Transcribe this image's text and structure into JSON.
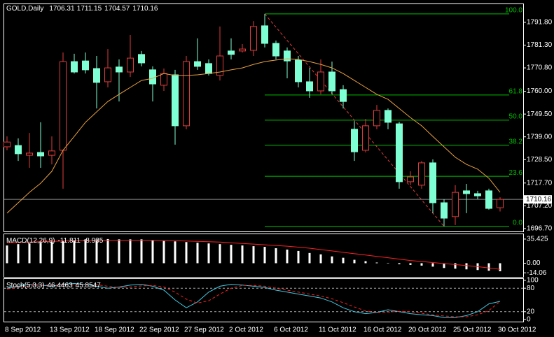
{
  "chart_data": [
    {
      "type": "candlestick",
      "title": "GOLD,Daily",
      "categories": [
        "8 Sep 2012",
        null,
        null,
        null,
        "13 Sep 2012",
        null,
        null,
        null,
        "18 Sep 2012",
        null,
        null,
        null,
        "22 Sep 2012",
        null,
        null,
        null,
        "27 Sep 2012",
        null,
        null,
        null,
        "2 Oct 2012",
        null,
        null,
        null,
        "6 Oct 2012",
        null,
        null,
        null,
        "11 Oct 2012",
        null,
        null,
        null,
        "16 Oct 2012",
        null,
        null,
        null,
        "20 Oct 2012",
        null,
        null,
        null,
        "25 Oct 2012",
        null,
        null,
        null,
        "30 Oct 2012"
      ],
      "open": [
        1734.4,
        1735.0,
        1730.5,
        1731.8,
        1730.5,
        1732.8,
        1773.7,
        1774.0,
        1770.5,
        1764.4,
        1771.2,
        1768.9,
        1777.0,
        1769.9,
        1762.8,
        1767.6,
        1744.1,
        1773.7,
        1772.8,
        1767.3,
        1778.6,
        1778.6,
        1778.9,
        1790.2,
        1782.1,
        1778.6,
        1774.4,
        1764.4,
        1760.2,
        1768.9,
        1760.8,
        1742.5,
        1732.8,
        1744.1,
        1751.2,
        1745.0,
        1718.3,
        1716.7,
        1727.0,
        1708.6,
        1702.2,
        1714.1,
        1712.8,
        1714.1,
        1706.31
      ],
      "high": [
        1739.2,
        1738.3,
        1740.8,
        1745.7,
        1739.2,
        1777.9,
        1777.3,
        1777.9,
        1776.3,
        1779.5,
        1774.7,
        1786.0,
        1778.6,
        1771.5,
        1770.5,
        1769.9,
        1776.3,
        1784.4,
        1774.7,
        1789.9,
        1784.4,
        1781.8,
        1792.4,
        1795.7,
        1783.4,
        1780.2,
        1776.3,
        1770.8,
        1774.7,
        1773.7,
        1762.8,
        1746.3,
        1747.3,
        1753.7,
        1752.1,
        1746.0,
        1723.1,
        1727.9,
        1728.6,
        1710.2,
        1716.7,
        1717.3,
        1714.1,
        1715.1,
        1711.15
      ],
      "low": [
        1732.8,
        1727.9,
        1724.7,
        1724.7,
        1726.3,
        1715.1,
        1768.2,
        1768.2,
        1752.1,
        1761.8,
        1755.3,
        1766.6,
        1771.5,
        1755.3,
        1760.2,
        1735.4,
        1742.5,
        1769.9,
        1767.3,
        1765.0,
        1774.7,
        1777.9,
        1776.3,
        1780.2,
        1774.7,
        1766.0,
        1761.8,
        1757.0,
        1758.6,
        1758.6,
        1752.1,
        1727.9,
        1731.8,
        1742.5,
        1742.5,
        1715.1,
        1716.7,
        1715.1,
        1703.8,
        1697.7,
        1698.3,
        1703.8,
        1710.2,
        1705.4,
        1704.57
      ],
      "close": [
        1736.6,
        1731.2,
        1731.5,
        1730.2,
        1732.5,
        1773.7,
        1768.9,
        1769.9,
        1764.1,
        1770.8,
        1768.9,
        1775.3,
        1773.1,
        1763.4,
        1768.2,
        1744.1,
        1773.7,
        1771.5,
        1768.2,
        1776.3,
        1777.0,
        1779.5,
        1789.9,
        1782.1,
        1776.3,
        1774.0,
        1764.4,
        1760.2,
        1768.9,
        1760.2,
        1755.3,
        1732.1,
        1744.1,
        1751.2,
        1745.7,
        1718.3,
        1720.5,
        1727.0,
        1708.6,
        1701.5,
        1713.4,
        1712.8,
        1711.8,
        1706.0,
        1710.16
      ],
      "up_color": "#e03c3c",
      "down_color": "#7fffd4",
      "ylim": [
        1695.7,
        1796.3
      ],
      "yticks": [
        {
          "value": 1791.8,
          "label": "1791.80"
        },
        {
          "value": 1781.3,
          "label": "1781.30"
        },
        {
          "value": 1770.8,
          "label": "1770.80"
        },
        {
          "value": 1760,
          "label": "1760.00"
        },
        {
          "value": 1749.5,
          "label": "1749.50"
        },
        {
          "value": 1739,
          "label": "1739.00"
        },
        {
          "value": 1728.5,
          "label": "1728.50"
        },
        {
          "value": 1717.7,
          "label": "1717.70"
        },
        {
          "value": 1707.2,
          "label": "1707.20"
        },
        {
          "value": 1696.7,
          "label": "1696.70"
        }
      ],
      "overlays": [
        {
          "color": "#e8a040",
          "values": [
            1703.8,
            1708.6,
            1713.4,
            1717.6,
            1723.1,
            1732.8,
            1739.2,
            1745.7,
            1750.5,
            1755.3,
            1758.6,
            1761.8,
            1765.0,
            1766.0,
            1768.2,
            1767.3,
            1767.3,
            1767.6,
            1768.2,
            1768.9,
            1769.9,
            1770.8,
            1772.4,
            1773.7,
            1774.4,
            1775.0,
            1774.7,
            1773.7,
            1772.4,
            1770.8,
            1768.2,
            1765.0,
            1761.8,
            1758.6,
            1756.3,
            1752.1,
            1747.9,
            1744.1,
            1739.2,
            1734.4,
            1729.6,
            1726.3,
            1724.1,
            1719.9,
            1713.4
          ]
        }
      ],
      "fibonacci": {
        "color": "#00c000",
        "levels": [
          {
            "value": 1795.7,
            "label": "100.0"
          },
          {
            "value": 1758.3,
            "label": "61.8"
          },
          {
            "value": 1746.7,
            "label": "50.0"
          },
          {
            "value": 1735.1,
            "label": "38.2"
          },
          {
            "value": 1720.8,
            "label": "23.6"
          },
          {
            "value": 1697.7,
            "label": "0.0"
          }
        ]
      },
      "trendline_color": "#e03c3c"
    },
    {
      "type": "macd",
      "title": "MACD(12,26,9)",
      "series": [
        {
          "kind": "histogram",
          "color": "#ffffff",
          "values": [
            26,
            28,
            29,
            30,
            31,
            33,
            34,
            35,
            35,
            35.425,
            35,
            35,
            35,
            34,
            33,
            32,
            31,
            30,
            29,
            28,
            27,
            26,
            25,
            24,
            22,
            20,
            18,
            15,
            13,
            10,
            8,
            5,
            3,
            1,
            0.5,
            -1.5,
            -2.5,
            -3.5,
            -5,
            -7,
            -8,
            -9,
            -10,
            -11,
            -11.811
          ]
        },
        {
          "kind": "line",
          "color": "#ff2020",
          "values": [
            30,
            30.5,
            31,
            31.5,
            32,
            32.5,
            33,
            33,
            33.5,
            33.5,
            33.5,
            33.5,
            33.5,
            33.5,
            33,
            33,
            32.5,
            32,
            31.5,
            31,
            30,
            29,
            28,
            27,
            26,
            25,
            23.5,
            22,
            20,
            18,
            16,
            14,
            12,
            10,
            8,
            6,
            4,
            2.5,
            1,
            -0.5,
            -2,
            -3.5,
            -5,
            -7,
            -8.935
          ]
        }
      ],
      "ylim": [
        -19,
        41.5
      ],
      "yticks": [
        35.425,
        {
          "value": 0,
          "label": "0.00"
        },
        -14.06
      ]
    },
    {
      "type": "stochastic",
      "title": "Stoch(5,3,3)",
      "series": [
        {
          "color": "#40c8e0",
          "dashed": false,
          "values": [
            80,
            85,
            90,
            88,
            85,
            90,
            92,
            90,
            85,
            80,
            83,
            88,
            90,
            85,
            75,
            50,
            30,
            45,
            70,
            85,
            90,
            88,
            85,
            82,
            75,
            70,
            65,
            60,
            55,
            45,
            30,
            20,
            15,
            18,
            25,
            20,
            15,
            12,
            10,
            5,
            5,
            10,
            20,
            40,
            46.4463
          ]
        },
        {
          "color": "#ff2020",
          "dashed": true,
          "values": [
            78,
            82,
            86,
            88,
            88,
            88,
            89,
            90,
            89,
            85,
            82,
            83,
            86,
            87,
            83,
            70,
            52,
            42,
            48,
            65,
            80,
            87,
            87,
            85,
            80,
            75,
            70,
            65,
            60,
            53,
            43,
            32,
            22,
            18,
            19,
            21,
            20,
            16,
            12,
            9,
            7,
            7,
            12,
            23,
            45.8547
          ]
        }
      ],
      "ylim": [
        0,
        100
      ],
      "yticks": [
        100,
        80,
        20,
        0
      ],
      "grid": "dashed"
    }
  ]
}
